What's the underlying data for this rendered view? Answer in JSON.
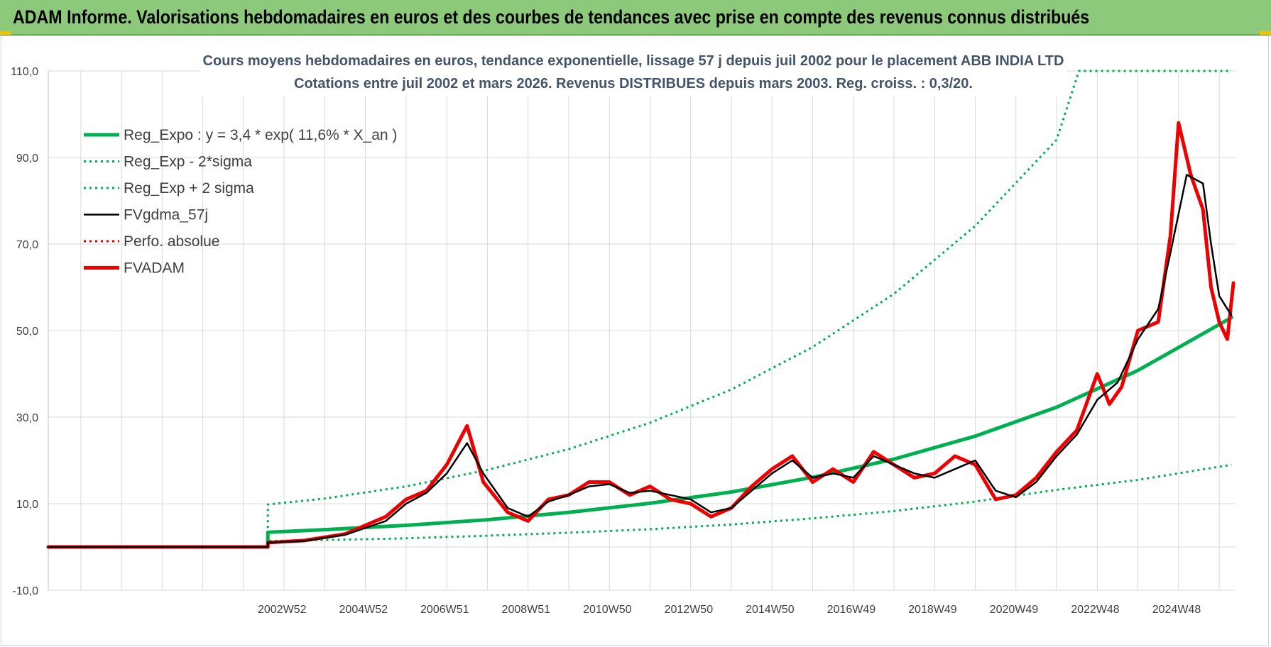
{
  "banner": {
    "title": "ADAM Informe. Valorisations hebdomadaires en euros et des courbes de tendances avec prise en compte des revenus connus distribués"
  },
  "chart_data": {
    "type": "line",
    "title": "Cours moyens hebdomadaires en euros, tendance exponentielle, lissage 57 j depuis juil 2002 pour le placement ABB INDIA LTD",
    "subtitle": "Cotations entre juil 2002 et mars 2026. Revenus DISTRIBUES depuis mars 2003. Reg. croiss. : 0,3/20.",
    "xlabel": "",
    "ylabel": "",
    "ylim": [
      -10,
      110
    ],
    "y_ticks": [
      "110,0",
      "90,0",
      "70,0",
      "50,0",
      "30,0",
      "10,0",
      "-10,0"
    ],
    "y_tick_values": [
      110,
      90,
      70,
      50,
      30,
      10,
      -10
    ],
    "x_range": [
      1997.2,
      2026.4
    ],
    "x_ticks": [
      "2002W52",
      "2004W52",
      "2006W51",
      "2008W51",
      "2010W50",
      "2012W50",
      "2014W50",
      "2016W49",
      "2018W49",
      "2020W49",
      "2022W48",
      "2024W48"
    ],
    "x_tick_values": [
      2002.95,
      2004.95,
      2006.95,
      2008.95,
      2010.95,
      2012.95,
      2014.95,
      2016.95,
      2018.95,
      2020.95,
      2022.95,
      2024.95
    ],
    "legend_position": "top-left",
    "series": [
      {
        "name": "Reg_Expo : y = 3,4 * exp( 11,6% *  X_an )",
        "color": "#00b050",
        "style": "solid-thick",
        "points": [
          [
            1997.2,
            0
          ],
          [
            2002.6,
            0
          ],
          [
            2002.6,
            3.4
          ],
          [
            2004,
            4.0
          ],
          [
            2006,
            5.0
          ],
          [
            2008,
            6.3
          ],
          [
            2010,
            8.0
          ],
          [
            2012,
            10.1
          ],
          [
            2014,
            12.7
          ],
          [
            2016,
            16.1
          ],
          [
            2018,
            20.3
          ],
          [
            2020,
            25.6
          ],
          [
            2022,
            32.3
          ],
          [
            2024,
            40.8
          ],
          [
            2026.3,
            53.0
          ]
        ]
      },
      {
        "name": "Reg_Exp - 2*sigma",
        "color": "#00b050",
        "style": "dotted",
        "points": [
          [
            1997.2,
            0
          ],
          [
            2002.6,
            0
          ],
          [
            2002.6,
            1.4
          ],
          [
            2004,
            1.6
          ],
          [
            2006,
            2.0
          ],
          [
            2008,
            2.6
          ],
          [
            2010,
            3.3
          ],
          [
            2012,
            4.1
          ],
          [
            2014,
            5.2
          ],
          [
            2016,
            6.6
          ],
          [
            2018,
            8.3
          ],
          [
            2020,
            10.5
          ],
          [
            2022,
            13.2
          ],
          [
            2024,
            15.5
          ],
          [
            2026.3,
            19.0
          ]
        ]
      },
      {
        "name": "Reg_Exp + 2 sigma",
        "color": "#00b050",
        "style": "dotted",
        "points": [
          [
            1997.2,
            0
          ],
          [
            2002.6,
            0
          ],
          [
            2002.6,
            9.8
          ],
          [
            2004,
            11.2
          ],
          [
            2006,
            14.0
          ],
          [
            2008,
            17.8
          ],
          [
            2010,
            22.6
          ],
          [
            2012,
            28.7
          ],
          [
            2014,
            36.4
          ],
          [
            2016,
            46.2
          ],
          [
            2018,
            58.5
          ],
          [
            2020,
            74.2
          ],
          [
            2022,
            94.1
          ],
          [
            2022.55,
            110
          ],
          [
            2026.3,
            110
          ]
        ]
      },
      {
        "name": "FVgdma_57j",
        "color": "#000000",
        "style": "solid",
        "points": [
          [
            1997.2,
            0
          ],
          [
            2002.6,
            0
          ],
          [
            2002.6,
            1.0
          ],
          [
            2003.5,
            1.4
          ],
          [
            2004.5,
            2.8
          ],
          [
            2005.5,
            6.0
          ],
          [
            2006.0,
            10.0
          ],
          [
            2006.5,
            12.5
          ],
          [
            2007.0,
            17.0
          ],
          [
            2007.5,
            24.0
          ],
          [
            2007.9,
            17.0
          ],
          [
            2008.5,
            9.0
          ],
          [
            2009.0,
            7.0
          ],
          [
            2009.5,
            10.5
          ],
          [
            2010.0,
            12.0
          ],
          [
            2010.5,
            14.0
          ],
          [
            2011.0,
            14.5
          ],
          [
            2011.5,
            12.5
          ],
          [
            2012.0,
            13.0
          ],
          [
            2012.5,
            12.0
          ],
          [
            2013.0,
            11.0
          ],
          [
            2013.5,
            8.0
          ],
          [
            2014.0,
            9.0
          ],
          [
            2014.5,
            13.0
          ],
          [
            2015.0,
            17.0
          ],
          [
            2015.5,
            20.0
          ],
          [
            2016.0,
            16.0
          ],
          [
            2016.5,
            17.0
          ],
          [
            2017.0,
            16.0
          ],
          [
            2017.5,
            21.0
          ],
          [
            2018.0,
            19.0
          ],
          [
            2018.5,
            17.0
          ],
          [
            2019.0,
            16.0
          ],
          [
            2019.5,
            18.0
          ],
          [
            2020.0,
            20.0
          ],
          [
            2020.5,
            13.0
          ],
          [
            2021.0,
            11.5
          ],
          [
            2021.5,
            15.0
          ],
          [
            2022.0,
            21.0
          ],
          [
            2022.5,
            26.0
          ],
          [
            2023.0,
            34.0
          ],
          [
            2023.5,
            38.0
          ],
          [
            2024.0,
            48.0
          ],
          [
            2024.5,
            55.0
          ],
          [
            2024.8,
            68.0
          ],
          [
            2025.2,
            86.0
          ],
          [
            2025.6,
            84.0
          ],
          [
            2025.8,
            70.0
          ],
          [
            2026.0,
            58.0
          ],
          [
            2026.3,
            53.5
          ]
        ]
      },
      {
        "name": "Perfo. absolue",
        "color": "#e00000",
        "style": "dotted",
        "points": [
          [
            1997.2,
            0
          ],
          [
            2002.6,
            0
          ],
          [
            2002.6,
            1.0
          ]
        ]
      },
      {
        "name": "FVADAM",
        "color": "#ee0000",
        "style": "solid-thick",
        "points": [
          [
            1997.2,
            0
          ],
          [
            2002.6,
            0
          ],
          [
            2002.6,
            1.0
          ],
          [
            2003.5,
            1.5
          ],
          [
            2004.5,
            3.0
          ],
          [
            2005.5,
            7.0
          ],
          [
            2006.0,
            11.0
          ],
          [
            2006.5,
            13.0
          ],
          [
            2007.0,
            19.0
          ],
          [
            2007.5,
            28.0
          ],
          [
            2007.9,
            15.0
          ],
          [
            2008.5,
            8.0
          ],
          [
            2009.0,
            6.0
          ],
          [
            2009.5,
            11.0
          ],
          [
            2010.0,
            12.0
          ],
          [
            2010.5,
            15.0
          ],
          [
            2011.0,
            15.0
          ],
          [
            2011.5,
            12.0
          ],
          [
            2012.0,
            14.0
          ],
          [
            2012.5,
            11.0
          ],
          [
            2013.0,
            10.0
          ],
          [
            2013.5,
            7.0
          ],
          [
            2014.0,
            9.0
          ],
          [
            2014.5,
            14.0
          ],
          [
            2015.0,
            18.0
          ],
          [
            2015.5,
            21.0
          ],
          [
            2016.0,
            15.0
          ],
          [
            2016.5,
            18.0
          ],
          [
            2017.0,
            15.0
          ],
          [
            2017.5,
            22.0
          ],
          [
            2018.0,
            19.0
          ],
          [
            2018.5,
            16.0
          ],
          [
            2019.0,
            17.0
          ],
          [
            2019.5,
            21.0
          ],
          [
            2020.0,
            19.0
          ],
          [
            2020.5,
            11.0
          ],
          [
            2021.0,
            12.0
          ],
          [
            2021.5,
            16.0
          ],
          [
            2022.0,
            22.0
          ],
          [
            2022.5,
            27.0
          ],
          [
            2023.0,
            40.0
          ],
          [
            2023.3,
            33.0
          ],
          [
            2023.6,
            37.0
          ],
          [
            2024.0,
            50.0
          ],
          [
            2024.5,
            52.0
          ],
          [
            2024.8,
            72.0
          ],
          [
            2025.0,
            98.0
          ],
          [
            2025.3,
            86.0
          ],
          [
            2025.6,
            78.0
          ],
          [
            2025.8,
            60.0
          ],
          [
            2026.0,
            52.0
          ],
          [
            2026.2,
            48.0
          ],
          [
            2026.35,
            61.0
          ]
        ]
      }
    ]
  }
}
